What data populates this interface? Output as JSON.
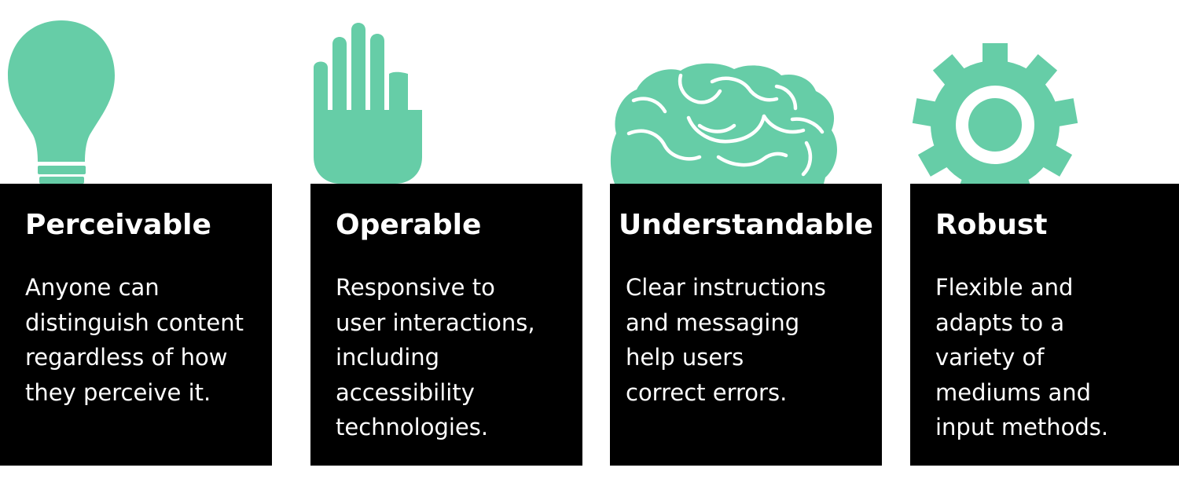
{
  "palette": {
    "icon_green": "#66cda7",
    "card_bg": "#000000",
    "card_text": "#ffffff",
    "page_bg": "#ffffff"
  },
  "principles": [
    {
      "icon": "light-bulb-icon",
      "title": "Perceivable",
      "description": "Anyone can\ndistinguish content\nregardless of how\nthey perceive it."
    },
    {
      "icon": "raised-hand-icon",
      "title": "Operable",
      "description": "Responsive to\nuser interactions,\nincluding\naccessibility\ntechnologies."
    },
    {
      "icon": "brain-icon",
      "title": "Understandable",
      "description": "Clear instructions\nand messaging\nhelp users\ncorrect errors."
    },
    {
      "icon": "gear-icon",
      "title": "Robust",
      "description": "Flexible and\nadapts to a\nvariety of\nmediums and\ninput methods."
    }
  ]
}
